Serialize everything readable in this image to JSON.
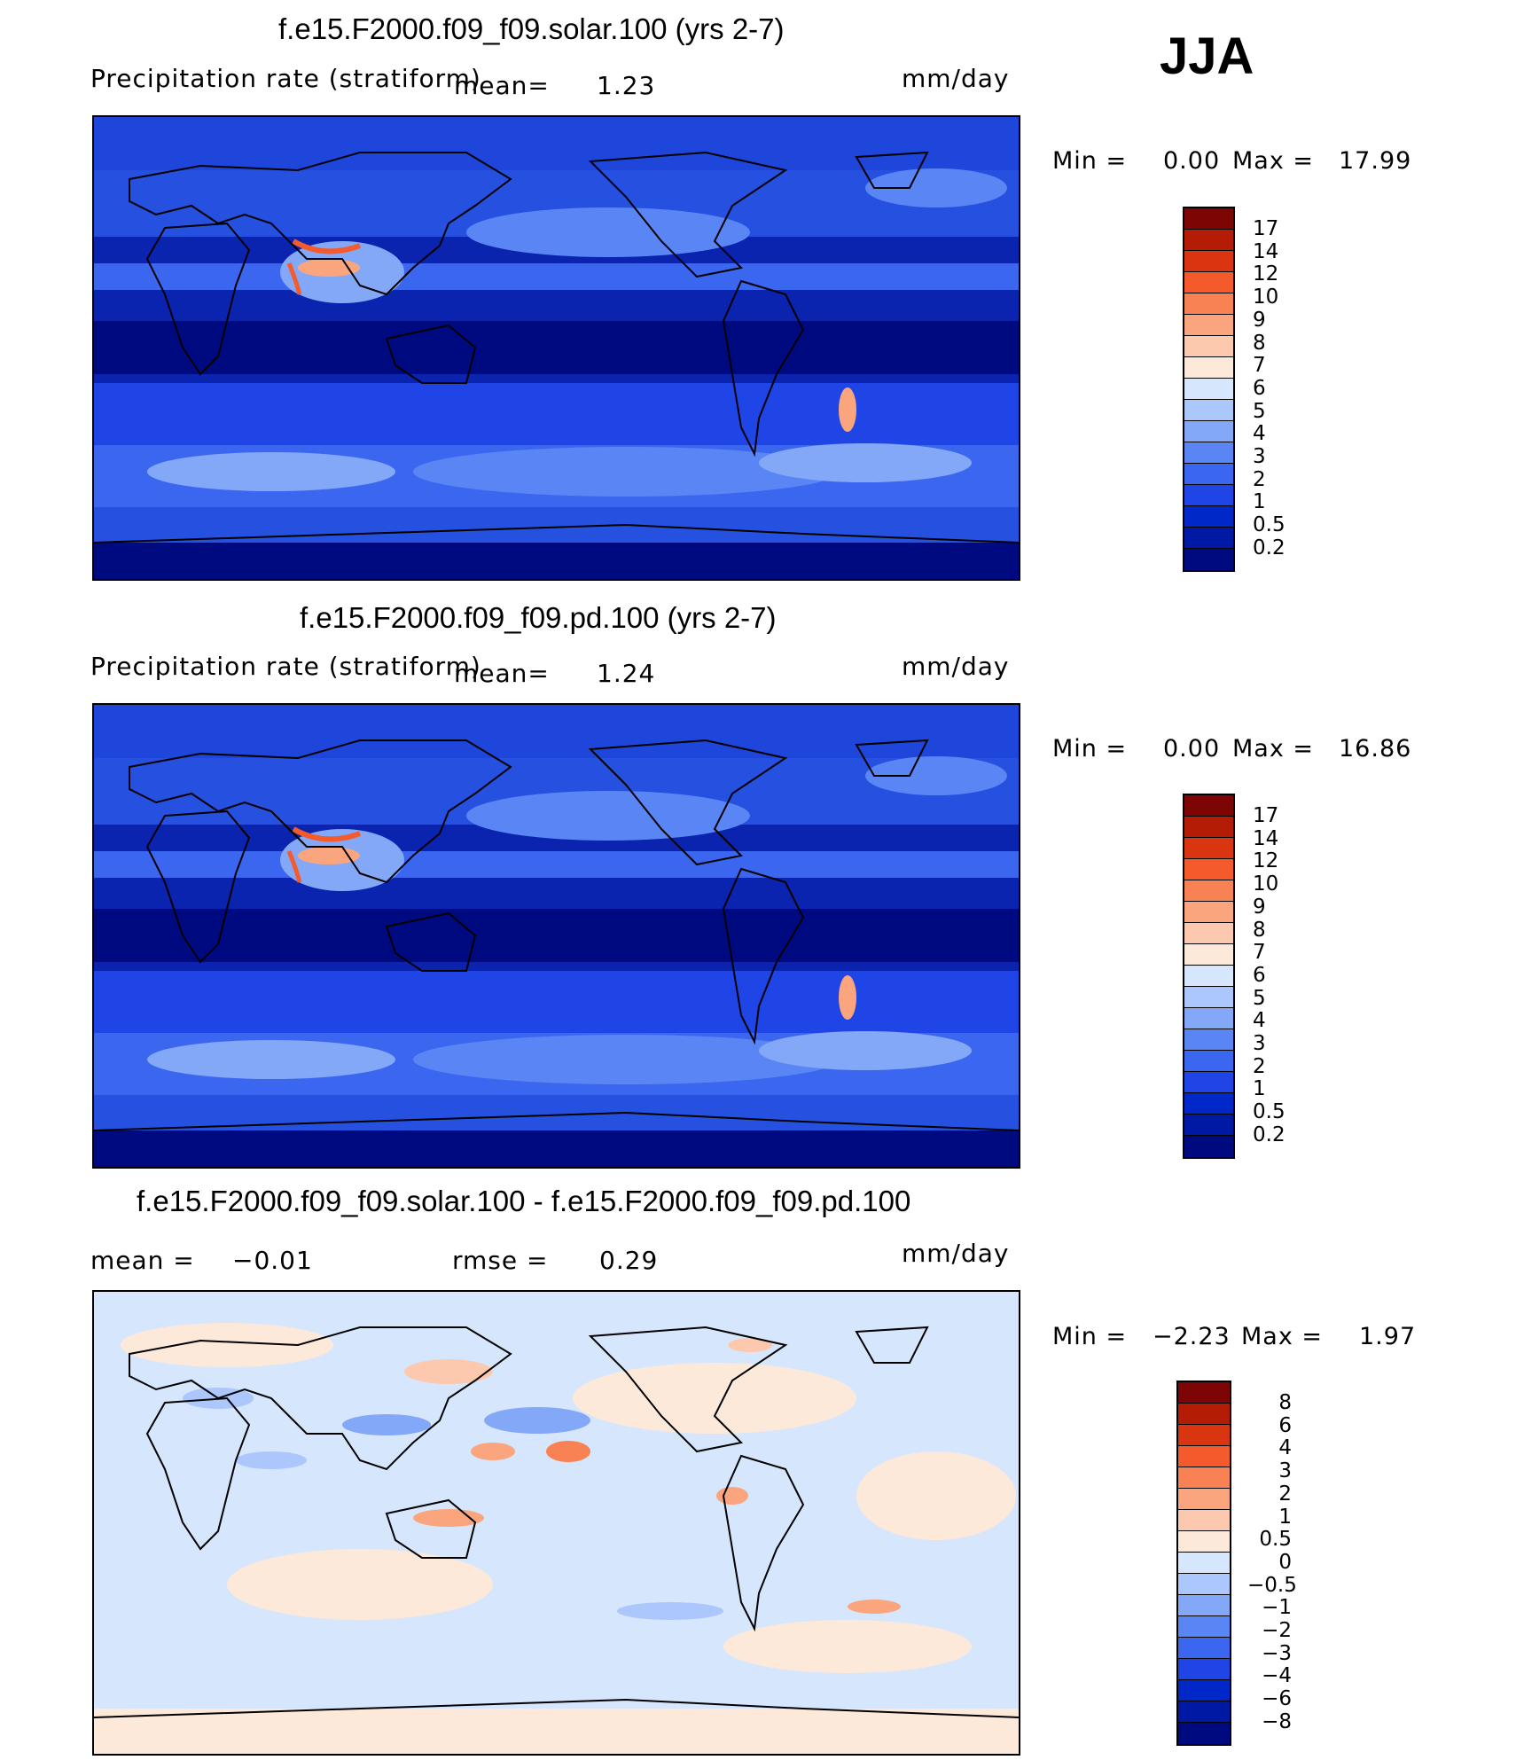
{
  "season": "JJA",
  "colors": {
    "precip_scale": [
      "#000a80",
      "#0019a5",
      "#0028c8",
      "#1f45e6",
      "#3a66f0",
      "#5a86f5",
      "#84a8f8",
      "#acc7fb",
      "#d6e6fc",
      "#fde9da",
      "#fcc9ae",
      "#fba57f",
      "#f98254",
      "#f45a2b",
      "#d93510",
      "#b51c05",
      "#7d0504"
    ],
    "diff_scale": [
      "#000a80",
      "#0019a5",
      "#0028c8",
      "#1f45e6",
      "#3a66f0",
      "#5a86f5",
      "#84a8f8",
      "#acc7fb",
      "#d6e6fc",
      "#fde9da",
      "#fcc9ae",
      "#fba57f",
      "#f98254",
      "#f45a2b",
      "#d93510",
      "#b51c05",
      "#7d0504"
    ]
  },
  "panels": [
    {
      "title": "f.e15.F2000.f09_f09.solar.100 (yrs 2-7)",
      "field": "Precipitation rate (stratiform)",
      "mean_label": "mean=",
      "mean_value": "1.23",
      "units": "mm/day",
      "min_label": "Min =",
      "min_value": "0.00",
      "max_label": "Max =",
      "max_value": "17.99",
      "ticks": [
        "17",
        "14",
        "12",
        "10",
        "9",
        "8",
        "7",
        "6",
        "5",
        "4",
        "3",
        "2",
        "1",
        "0.5",
        "0.2"
      ]
    },
    {
      "title": "f.e15.F2000.f09_f09.pd.100 (yrs 2-7)",
      "field": "Precipitation rate (stratiform)",
      "mean_label": "mean=",
      "mean_value": "1.24",
      "units": "mm/day",
      "min_label": "Min =",
      "min_value": "0.00",
      "max_label": "Max =",
      "max_value": "16.86",
      "ticks": [
        "17",
        "14",
        "12",
        "10",
        "9",
        "8",
        "7",
        "6",
        "5",
        "4",
        "3",
        "2",
        "1",
        "0.5",
        "0.2"
      ]
    },
    {
      "title": "f.e15.F2000.f09_f09.solar.100 - f.e15.F2000.f09_f09.pd.100",
      "mean_label": "mean =",
      "mean_value": "−0.01",
      "rmse_label": "rmse =",
      "rmse_value": "0.29",
      "units": "mm/day",
      "min_label": "Min =",
      "min_value": "−2.23",
      "max_label": "Max =",
      "max_value": "1.97",
      "ticks": [
        "8",
        "6",
        "4",
        "3",
        "2",
        "1",
        "0.5",
        "0",
        "−0.5",
        "−1",
        "−2",
        "−3",
        "−4",
        "−6",
        "−8"
      ]
    }
  ]
}
